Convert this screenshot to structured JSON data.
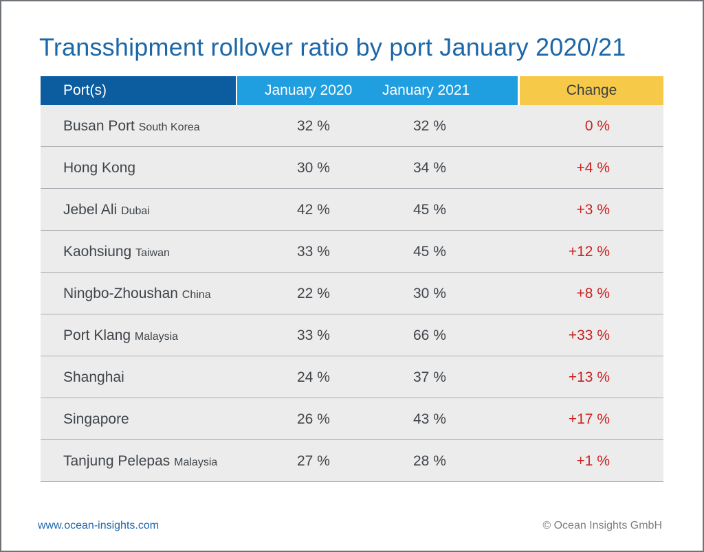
{
  "chart_data": {
    "type": "table",
    "title": "Transshipment rollover ratio by port January 2020/21",
    "columns": [
      "Port(s)",
      "January 2020",
      "January 2021",
      "Change"
    ],
    "rows": [
      {
        "port": "Busan Port",
        "country": "South Korea",
        "jan2020": "32 %",
        "jan2021": "32 %",
        "change": "0 %"
      },
      {
        "port": "Hong Kong",
        "country": "",
        "jan2020": "30 %",
        "jan2021": "34 %",
        "change": "+4 %"
      },
      {
        "port": "Jebel Ali",
        "country": "Dubai",
        "jan2020": "42 %",
        "jan2021": "45 %",
        "change": "+3 %"
      },
      {
        "port": "Kaohsiung",
        "country": "Taiwan",
        "jan2020": "33 %",
        "jan2021": "45 %",
        "change": "+12 %"
      },
      {
        "port": "Ningbo-Zhoushan",
        "country": "China",
        "jan2020": "22 %",
        "jan2021": "30 %",
        "change": "+8 %"
      },
      {
        "port": "Port Klang",
        "country": "Malaysia",
        "jan2020": "33 %",
        "jan2021": "66 %",
        "change": "+33 %"
      },
      {
        "port": "Shanghai",
        "country": "",
        "jan2020": "24 %",
        "jan2021": "37 %",
        "change": "+13 %"
      },
      {
        "port": "Singapore",
        "country": "",
        "jan2020": "26 %",
        "jan2021": "43 %",
        "change": "+17 %"
      },
      {
        "port": "Tanjung Pelepas",
        "country": "Malaysia",
        "jan2020": "27 %",
        "jan2021": "28 %",
        "change": "+1 %"
      }
    ]
  },
  "footer": {
    "website": "www.ocean-insights.com",
    "copyright": "© Ocean Insights GmbH"
  },
  "colors": {
    "title": "#1c67a8",
    "header_port": "#0c5da0",
    "header_years": "#1f9ee0",
    "header_change": "#f7c948",
    "row_bg": "#ececec",
    "change_text": "#cc1f1f"
  }
}
